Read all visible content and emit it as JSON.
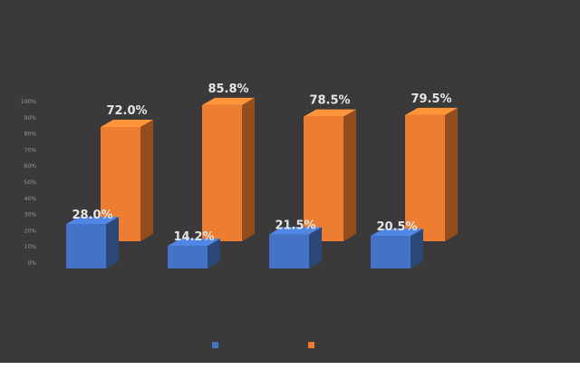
{
  "chart_data": {
    "type": "bar",
    "title": "",
    "subtitle": "",
    "categories": [
      "",
      "",
      "",
      ""
    ],
    "ylim": [
      0,
      100
    ],
    "yticks": [
      "0%",
      "10%",
      "20%",
      "30%",
      "40%",
      "50%",
      "60%",
      "70%",
      "80%",
      "90%",
      "100%"
    ],
    "grid": false,
    "legend_position": "bottom",
    "series": [
      {
        "name": "",
        "color": "#4472c4",
        "values": [
          28.0,
          14.2,
          21.5,
          20.5
        ],
        "labels": [
          "28.0%",
          "14.2%",
          "21.5%",
          "20.5%"
        ]
      },
      {
        "name": "",
        "color": "#ed7d31",
        "values": [
          72.0,
          85.8,
          78.5,
          79.5
        ],
        "labels": [
          "72.0%",
          "85.8%",
          "78.5%",
          "79.5%"
        ]
      }
    ],
    "depth_axis_labels": [
      "",
      ""
    ]
  },
  "footer_text": ""
}
